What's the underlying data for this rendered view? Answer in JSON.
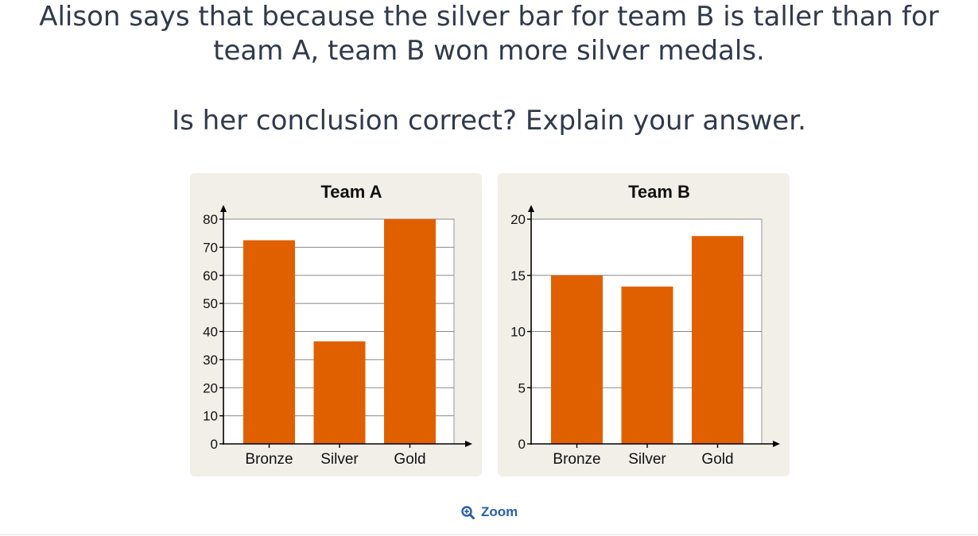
{
  "question": {
    "line1": "Alison says that because the silver bar for team B is taller than for",
    "line2": "team A, team B won more silver medals.",
    "line3": "Is her conclusion correct? Explain your answer."
  },
  "zoom": {
    "label": "Zoom",
    "icon": "zoom-in-icon"
  },
  "colors": {
    "bar": "#e06000",
    "panel_bg": "#f2efe9",
    "grid": "#888888",
    "zoom": "#2b5fa8"
  },
  "chart_data": [
    {
      "type": "bar",
      "title": "Team A",
      "categories": [
        "Bronze",
        "Silver",
        "Gold"
      ],
      "values": [
        72.5,
        36.5,
        80
      ],
      "ylim": [
        0,
        80
      ],
      "yticks": [
        0,
        10,
        20,
        30,
        40,
        50,
        60,
        70,
        80
      ],
      "grid": true,
      "xlabel": "",
      "ylabel": ""
    },
    {
      "type": "bar",
      "title": "Team B",
      "categories": [
        "Bronze",
        "Silver",
        "Gold"
      ],
      "values": [
        15,
        14,
        18.5
      ],
      "ylim": [
        0,
        20
      ],
      "yticks": [
        0,
        5,
        10,
        15,
        20
      ],
      "grid": true,
      "xlabel": "",
      "ylabel": ""
    }
  ]
}
